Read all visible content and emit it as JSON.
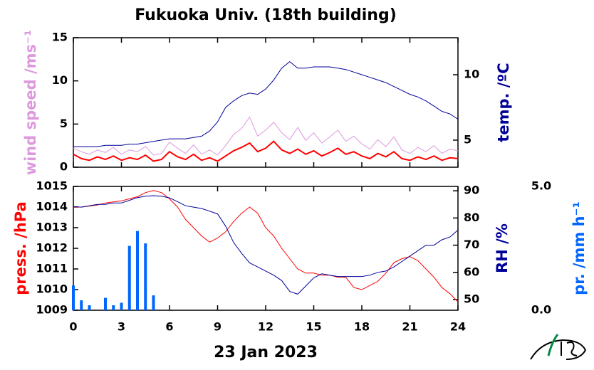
{
  "chart_data": [
    {
      "type": "line",
      "title": "Fukuoka Univ. (18th building)",
      "x": [
        0,
        0.5,
        1,
        1.5,
        2,
        2.5,
        3,
        3.5,
        4,
        4.5,
        5,
        5.5,
        6,
        6.5,
        7,
        7.5,
        8,
        8.5,
        9,
        9.5,
        10,
        10.5,
        11,
        11.5,
        12,
        12.5,
        13,
        13.5,
        14,
        14.5,
        15,
        15.5,
        16,
        16.5,
        17,
        17.5,
        18,
        18.5,
        19,
        19.5,
        20,
        20.5,
        21,
        21.5,
        22,
        22.5,
        23,
        23.5,
        24
      ],
      "xlim": [
        0,
        24
      ],
      "xticks": [
        0,
        3,
        6,
        9,
        12,
        15,
        18,
        21,
        24
      ],
      "ylim": [
        0,
        15
      ],
      "yticks": [
        0,
        5,
        10,
        15
      ],
      "ylabel": "wind speed /ms⁻¹",
      "y2lim": [
        2.93,
        12.83
      ],
      "y2ticks": [
        5,
        10
      ],
      "y2label": "temp. /ºC",
      "series": [
        {
          "color": "#dd99dd",
          "axis": "y",
          "values": [
            2.2,
            1.8,
            1.5,
            2.0,
            1.7,
            2.3,
            1.5,
            2.0,
            1.8,
            2.4,
            1.4,
            1.6,
            2.9,
            2.2,
            1.6,
            2.6,
            1.5,
            2.0,
            1.4,
            2.5,
            3.8,
            4.5,
            5.8,
            3.6,
            4.3,
            5.2,
            4.0,
            3.2,
            4.6,
            3.1,
            4.0,
            2.8,
            3.5,
            4.3,
            3.0,
            3.6,
            2.7,
            2.1,
            3.2,
            2.4,
            3.5,
            2.0,
            1.6,
            2.3,
            1.8,
            2.5,
            1.6,
            2.1,
            1.9
          ]
        },
        {
          "color": "#ff0000",
          "axis": "y",
          "values": [
            1.5,
            1.0,
            0.8,
            1.2,
            0.9,
            1.3,
            0.8,
            1.1,
            0.9,
            1.4,
            0.7,
            0.9,
            1.8,
            1.2,
            0.9,
            1.5,
            0.8,
            1.1,
            0.7,
            1.3,
            1.9,
            2.3,
            2.8,
            1.8,
            2.2,
            3.0,
            2.0,
            1.6,
            2.1,
            1.5,
            1.9,
            1.3,
            1.7,
            2.2,
            1.5,
            1.8,
            1.3,
            1.0,
            1.6,
            1.2,
            1.8,
            1.0,
            0.8,
            1.2,
            0.9,
            1.3,
            0.8,
            1.1,
            1.0
          ]
        },
        {
          "color": "#000099",
          "axis": "y2",
          "values": [
            4.5,
            4.5,
            4.5,
            4.5,
            4.6,
            4.6,
            4.6,
            4.7,
            4.7,
            4.8,
            4.9,
            5.0,
            5.1,
            5.1,
            5.1,
            5.2,
            5.3,
            5.7,
            6.4,
            7.5,
            8.0,
            8.4,
            8.6,
            8.5,
            8.9,
            9.6,
            10.5,
            11.0,
            10.5,
            10.5,
            10.6,
            10.6,
            10.6,
            10.5,
            10.4,
            10.2,
            10.0,
            9.8,
            9.6,
            9.4,
            9.1,
            8.8,
            8.5,
            8.3,
            8.0,
            7.6,
            7.2,
            7.0,
            6.6
          ]
        }
      ]
    },
    {
      "type": "line",
      "xlabel": "23 Jan 2023",
      "x": [
        0,
        0.5,
        1,
        1.5,
        2,
        2.5,
        3,
        3.5,
        4,
        4.5,
        5,
        5.5,
        6,
        6.5,
        7,
        7.5,
        8,
        8.5,
        9,
        9.5,
        10,
        10.5,
        11,
        11.5,
        12,
        12.5,
        13,
        13.5,
        14,
        14.5,
        15,
        15.5,
        16,
        16.5,
        17,
        17.5,
        18,
        18.5,
        19,
        19.5,
        20,
        20.5,
        21,
        21.5,
        22,
        22.5,
        23,
        23.5,
        24
      ],
      "xlim": [
        0,
        24
      ],
      "xticks": [
        0,
        3,
        6,
        9,
        12,
        15,
        18,
        21,
        24
      ],
      "ylim": [
        1009,
        1015
      ],
      "yticks": [
        1009,
        1010,
        1011,
        1012,
        1013,
        1014,
        1015
      ],
      "ylabel": "press. /hPa",
      "y2lim": [
        46.1,
        91.6
      ],
      "y2ticks": [
        50,
        60,
        70,
        80,
        90
      ],
      "y2label": "RH /%",
      "y3lim": [
        0,
        5
      ],
      "y3ticks": [
        {
          "value": 0,
          "label": "0.0"
        },
        {
          "value": 5,
          "label": "5.0"
        }
      ],
      "y3label": "pr. /mm h⁻¹",
      "series": [
        {
          "type": "bar",
          "color": "#0066ff",
          "axis": "y3",
          "values": [
            1.0,
            0.4,
            0.2,
            0,
            0.5,
            0.2,
            0.3,
            2.6,
            3.2,
            2.7,
            0.6,
            0,
            0,
            0,
            0,
            0,
            0,
            0,
            0,
            0,
            0,
            0,
            0,
            0,
            0,
            0,
            0,
            0,
            0,
            0,
            0,
            0,
            0,
            0,
            0,
            0,
            0,
            0,
            0,
            0,
            0,
            0,
            0,
            0,
            0,
            0,
            0,
            0,
            0
          ]
        },
        {
          "type": "line",
          "color": "#ff0000",
          "axis": "y",
          "values": [
            1014.0,
            1014.0,
            1014.05,
            1014.1,
            1014.2,
            1014.25,
            1014.3,
            1014.4,
            1014.5,
            1014.7,
            1014.8,
            1014.7,
            1014.4,
            1014.0,
            1013.4,
            1013.0,
            1012.6,
            1012.3,
            1012.5,
            1012.8,
            1013.3,
            1013.7,
            1014.0,
            1013.7,
            1013.0,
            1012.6,
            1012.0,
            1011.5,
            1011.0,
            1010.8,
            1010.8,
            1010.7,
            1010.7,
            1010.6,
            1010.6,
            1010.1,
            1010.0,
            1010.2,
            1010.4,
            1010.8,
            1011.3,
            1011.5,
            1011.6,
            1011.4,
            1011.0,
            1010.6,
            1010.1,
            1009.8,
            1009.4
          ]
        },
        {
          "type": "line",
          "color": "#000099",
          "axis": "y2",
          "values": [
            84.2,
            84.0,
            84.5,
            85.0,
            85.0,
            85.5,
            85.5,
            86.5,
            87.5,
            88.0,
            88.2,
            88.0,
            87.4,
            86.0,
            84.5,
            84.0,
            83.5,
            82.5,
            81.5,
            77,
            71,
            67,
            63.5,
            62,
            60.5,
            59,
            57,
            53,
            52,
            55,
            58,
            59.5,
            59,
            58.5,
            58.5,
            58.5,
            58.5,
            59,
            60,
            60.5,
            62,
            64,
            66,
            68,
            70,
            70,
            72,
            73,
            75.6
          ]
        }
      ]
    }
  ]
}
